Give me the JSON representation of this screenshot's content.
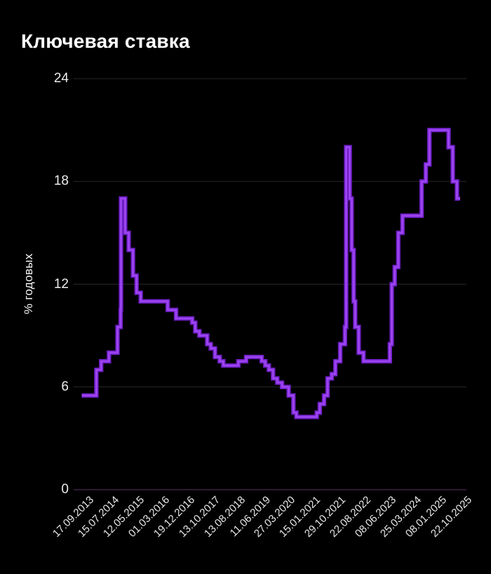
{
  "header": {
    "title": "Ключевая ставка"
  },
  "colors": {
    "background": "#000000",
    "title_text": "#ffffff",
    "axis_text": "#ececec",
    "gridline": "#282828",
    "zero_axis": "#3c2149",
    "line_core": "#9b43f0",
    "line_edge": "#6a1cbe"
  },
  "chart_data": {
    "type": "line",
    "style": "step-after",
    "title": "Ключевая ставка",
    "xlabel": "",
    "ylabel": "% годовых",
    "ylim": [
      0,
      24
    ],
    "yticks": [
      0,
      6,
      12,
      18,
      24
    ],
    "grid": "horizontal",
    "legend_position": "none",
    "x_tick_labels": [
      "17.09.2013",
      "15.07.2014",
      "12.05.2015",
      "01.03.2016",
      "19.12.2016",
      "13.10.2017",
      "13.08.2018",
      "11.06.2019",
      "27.03.2020",
      "15.01.2021",
      "29.10.2021",
      "22.08.2022",
      "08.06.2023",
      "25.03.2024",
      "08.01.2025",
      "22.10.2025"
    ],
    "x_end": "22.10.2025",
    "series": [
      {
        "name": "Ключевая ставка, % годовых",
        "points": [
          {
            "date": "13.09.2013",
            "value": 5.5
          },
          {
            "date": "03.03.2014",
            "value": 7.0
          },
          {
            "date": "28.04.2014",
            "value": 7.5
          },
          {
            "date": "28.07.2014",
            "value": 8.0
          },
          {
            "date": "05.11.2014",
            "value": 9.5
          },
          {
            "date": "12.12.2014",
            "value": 10.5
          },
          {
            "date": "16.12.2014",
            "value": 17.0
          },
          {
            "date": "02.02.2015",
            "value": 15.0
          },
          {
            "date": "16.03.2015",
            "value": 14.0
          },
          {
            "date": "05.05.2015",
            "value": 12.5
          },
          {
            "date": "16.06.2015",
            "value": 11.5
          },
          {
            "date": "03.08.2015",
            "value": 11.0
          },
          {
            "date": "14.06.2016",
            "value": 10.5
          },
          {
            "date": "19.09.2016",
            "value": 10.0
          },
          {
            "date": "27.03.2017",
            "value": 9.75
          },
          {
            "date": "02.05.2017",
            "value": 9.25
          },
          {
            "date": "19.06.2017",
            "value": 9.0
          },
          {
            "date": "18.09.2017",
            "value": 8.5
          },
          {
            "date": "30.10.2017",
            "value": 8.25
          },
          {
            "date": "18.12.2017",
            "value": 7.75
          },
          {
            "date": "12.02.2018",
            "value": 7.5
          },
          {
            "date": "26.03.2018",
            "value": 7.25
          },
          {
            "date": "17.09.2018",
            "value": 7.5
          },
          {
            "date": "17.12.2018",
            "value": 7.75
          },
          {
            "date": "17.06.2019",
            "value": 7.5
          },
          {
            "date": "29.07.2019",
            "value": 7.25
          },
          {
            "date": "09.09.2019",
            "value": 7.0
          },
          {
            "date": "28.10.2019",
            "value": 6.5
          },
          {
            "date": "16.12.2019",
            "value": 6.25
          },
          {
            "date": "10.02.2020",
            "value": 6.0
          },
          {
            "date": "27.04.2020",
            "value": 5.5
          },
          {
            "date": "22.06.2020",
            "value": 4.5
          },
          {
            "date": "27.07.2020",
            "value": 4.25
          },
          {
            "date": "22.03.2021",
            "value": 4.5
          },
          {
            "date": "26.04.2021",
            "value": 5.0
          },
          {
            "date": "15.06.2021",
            "value": 5.5
          },
          {
            "date": "26.07.2021",
            "value": 6.5
          },
          {
            "date": "13.09.2021",
            "value": 6.75
          },
          {
            "date": "25.10.2021",
            "value": 7.5
          },
          {
            "date": "20.12.2021",
            "value": 8.5
          },
          {
            "date": "14.02.2022",
            "value": 9.5
          },
          {
            "date": "28.02.2022",
            "value": 20.0
          },
          {
            "date": "11.04.2022",
            "value": 17.0
          },
          {
            "date": "04.05.2022",
            "value": 14.0
          },
          {
            "date": "27.05.2022",
            "value": 11.0
          },
          {
            "date": "14.06.2022",
            "value": 9.5
          },
          {
            "date": "25.07.2022",
            "value": 8.0
          },
          {
            "date": "19.09.2022",
            "value": 7.5
          },
          {
            "date": "24.07.2023",
            "value": 8.5
          },
          {
            "date": "15.08.2023",
            "value": 12.0
          },
          {
            "date": "18.09.2023",
            "value": 13.0
          },
          {
            "date": "30.10.2023",
            "value": 15.0
          },
          {
            "date": "18.12.2023",
            "value": 16.0
          },
          {
            "date": "29.07.2024",
            "value": 18.0
          },
          {
            "date": "16.09.2024",
            "value": 19.0
          },
          {
            "date": "28.10.2024",
            "value": 21.0
          },
          {
            "date": "09.06.2025",
            "value": 20.0
          },
          {
            "date": "28.07.2025",
            "value": 18.0
          },
          {
            "date": "15.09.2025",
            "value": 17.0
          }
        ]
      }
    ]
  }
}
